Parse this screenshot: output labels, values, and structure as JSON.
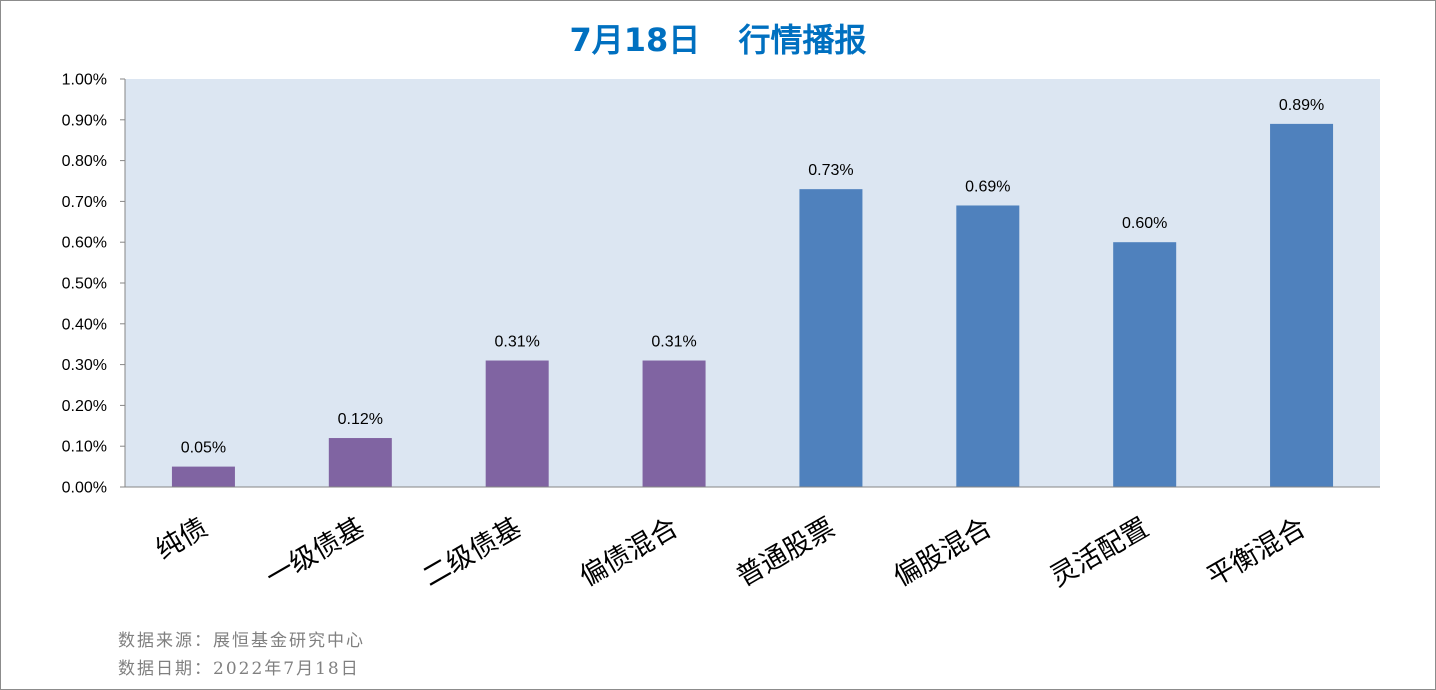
{
  "colors": {
    "title": "#0070C0",
    "axis": "#868686"
  },
  "footer": {
    "source": "数据来源：展恒基金研究中心",
    "date": "数据日期：2022年7月18日"
  },
  "chart_data": {
    "type": "bar",
    "title": "7月18日  行情播报",
    "xlabel": "",
    "ylabel": "",
    "categories": [
      "纯债",
      "一级债基",
      "二级债基",
      "偏债混合",
      "普通股票",
      "偏股混合",
      "灵活配置",
      "平衡混合"
    ],
    "values": [
      0.05,
      0.12,
      0.31,
      0.31,
      0.73,
      0.69,
      0.6,
      0.89
    ],
    "value_labels": [
      "0.05%",
      "0.12%",
      "0.31%",
      "0.31%",
      "0.73%",
      "0.69%",
      "0.60%",
      "0.89%"
    ],
    "unit": "%",
    "ylim": [
      0,
      1.0
    ],
    "yticks": [
      "0.00%",
      "0.10%",
      "0.20%",
      "0.30%",
      "0.40%",
      "0.50%",
      "0.60%",
      "0.70%",
      "0.80%",
      "0.90%",
      "1.00%"
    ],
    "grid": false,
    "bar_colors": [
      "#8064A2",
      "#8064A2",
      "#8064A2",
      "#8064A2",
      "#4F81BD",
      "#4F81BD",
      "#4F81BD",
      "#4F81BD"
    ],
    "plot_background": "#DCE6F2"
  }
}
